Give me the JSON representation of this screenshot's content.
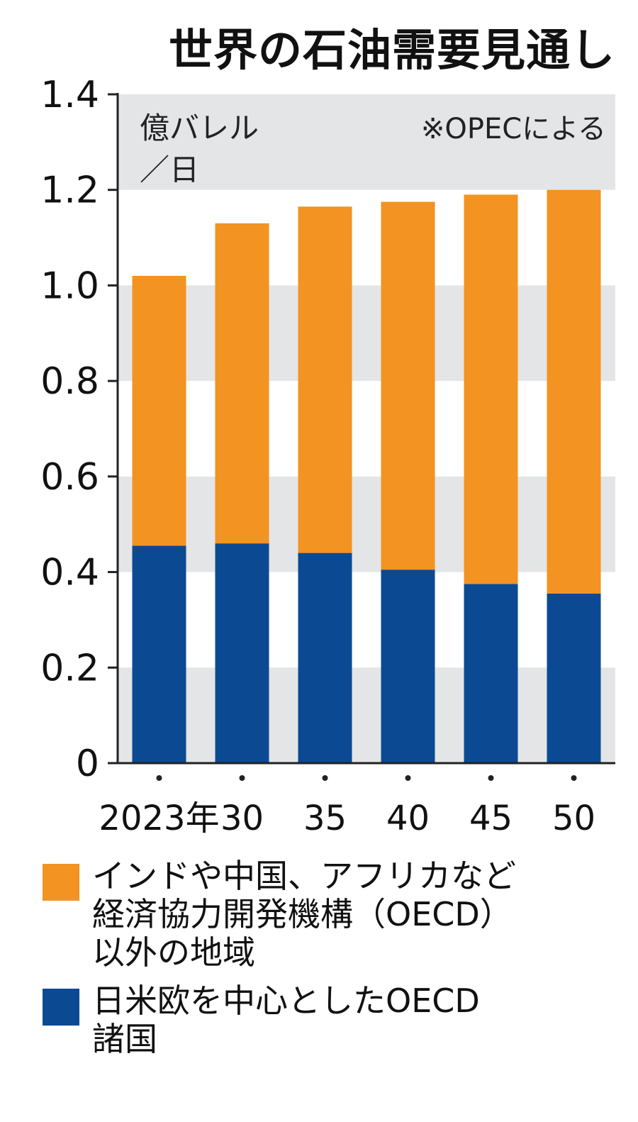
{
  "colors": {
    "band": "#e4e5e6",
    "axis": "#222222",
    "oecd_other": "#f39322",
    "oecd": "#0b4a93"
  },
  "chart_data": {
    "type": "bar",
    "stacked": true,
    "title": "世界の石油需要見通し",
    "unit_label": [
      "億バレル",
      "／日"
    ],
    "source_note": "※OPECによる",
    "categories": [
      "2023年",
      "30",
      "35",
      "40",
      "45",
      "50"
    ],
    "ylim": [
      0,
      1.4
    ],
    "yticks": [
      "0",
      "0.2",
      "0.4",
      "0.6",
      "0.8",
      "1.0",
      "1.2",
      "1.4"
    ],
    "grid": "alternating horizontal bands",
    "legend_position": "bottom",
    "series": [
      {
        "key": "oecd",
        "name": "日米欧を中心としたOECD諸国",
        "values": [
          0.455,
          0.46,
          0.44,
          0.405,
          0.375,
          0.355
        ]
      },
      {
        "key": "oecd_other",
        "name": "インドや中国、アフリカなど経済協力開発機構（OECD）以外の地域",
        "values": [
          0.565,
          0.67,
          0.725,
          0.77,
          0.815,
          0.845
        ]
      }
    ]
  },
  "legend": [
    {
      "key": "oecd_other",
      "lines": [
        "インドや中国、アフリカなど",
        "経済協力開発機構（OECD）",
        "以外の地域"
      ]
    },
    {
      "key": "oecd",
      "lines": [
        "日米欧を中心としたOECD",
        "諸国"
      ]
    }
  ]
}
